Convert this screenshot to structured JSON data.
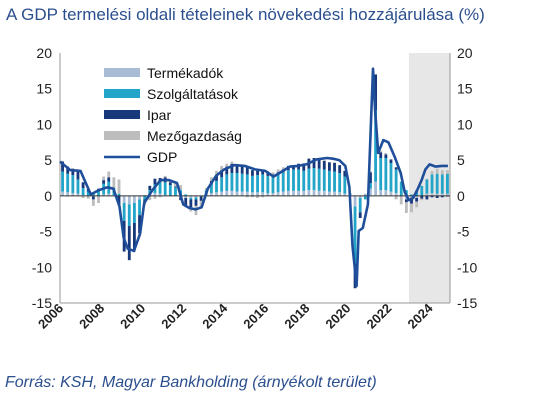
{
  "title": "A GDP termelési oldali tételeinek növekedési hozzájárulása (%)",
  "source": "Forrás: KSH, Magyar Bankholding (árnyékolt terület)",
  "colors": {
    "termekadok": "#a9bcd6",
    "szolgaltatasok": "#22a5c8",
    "ipar": "#17397c",
    "mezogazdasag": "#bdbdbd",
    "gdp": "#1f4e9a",
    "shade": "#e7e7e7",
    "axis": "#999999"
  },
  "chart_data": {
    "type": "bar",
    "stacked": true,
    "xlabel": "",
    "ylabel": "",
    "ylim": [
      -15,
      20
    ],
    "yticks": [
      "20",
      "15",
      "10",
      "5",
      "0",
      "-5",
      "-10",
      "-15"
    ],
    "xticks": [
      "2006",
      "2008",
      "2010",
      "2012",
      "2014",
      "2016",
      "2018",
      "2020",
      "2022",
      "2024"
    ],
    "x_range": [
      2006.0,
      2025.0
    ],
    "shaded_from": 2023.0,
    "legend_position": "top-left",
    "grid": false,
    "series": [
      {
        "name": "Termékadók",
        "x": [
          2006.125,
          2006.375,
          2006.625,
          2006.875,
          2007.125,
          2007.375,
          2007.625,
          2007.875,
          2008.125,
          2008.375,
          2008.625,
          2008.875,
          2009.125,
          2009.375,
          2009.625,
          2009.875,
          2010.125,
          2010.375,
          2010.625,
          2010.875,
          2011.125,
          2011.375,
          2011.625,
          2011.875,
          2012.125,
          2012.375,
          2012.625,
          2012.875,
          2013.125,
          2013.375,
          2013.625,
          2013.875,
          2014.125,
          2014.375,
          2014.625,
          2014.875,
          2015.125,
          2015.375,
          2015.625,
          2015.875,
          2016.125,
          2016.375,
          2016.625,
          2016.875,
          2017.125,
          2017.375,
          2017.625,
          2017.875,
          2018.125,
          2018.375,
          2018.625,
          2018.875,
          2019.125,
          2019.375,
          2019.625,
          2019.875,
          2020.125,
          2020.375,
          2020.625,
          2020.875,
          2021.125,
          2021.375,
          2021.625,
          2021.875,
          2022.125,
          2022.375,
          2022.625,
          2022.875,
          2023.125,
          2023.375,
          2023.625,
          2023.875,
          2024.125,
          2024.375,
          2024.625,
          2024.875
        ],
        "values": [
          0.6,
          0.5,
          0.4,
          0.3,
          0.1,
          0.0,
          -0.1,
          0.0,
          0.2,
          0.3,
          0.1,
          0.0,
          -1.0,
          -1.2,
          -1.0,
          -0.5,
          0.1,
          0.3,
          0.4,
          0.3,
          0.1,
          0.0,
          0.0,
          -0.2,
          -0.3,
          -0.3,
          -0.2,
          0.0,
          0.2,
          0.4,
          0.5,
          0.6,
          0.7,
          0.7,
          0.6,
          0.6,
          0.6,
          0.5,
          0.5,
          0.5,
          0.4,
          0.4,
          0.5,
          0.6,
          0.7,
          0.7,
          0.7,
          0.7,
          0.8,
          0.8,
          0.7,
          0.7,
          0.6,
          0.6,
          0.5,
          0.3,
          0.0,
          -1.5,
          -0.3,
          0.3,
          1.0,
          2.0,
          0.8,
          0.8,
          0.6,
          0.4,
          0.0,
          -0.5,
          -0.5,
          -0.3,
          0.0,
          0.3,
          0.4,
          0.3,
          0.3,
          0.3
        ]
      },
      {
        "name": "Szolgáltatások",
        "x": [
          2006.125,
          2006.375,
          2006.625,
          2006.875,
          2007.125,
          2007.375,
          2007.625,
          2007.875,
          2008.125,
          2008.375,
          2008.625,
          2008.875,
          2009.125,
          2009.375,
          2009.625,
          2009.875,
          2010.125,
          2010.375,
          2010.625,
          2010.875,
          2011.125,
          2011.375,
          2011.625,
          2011.875,
          2012.125,
          2012.375,
          2012.625,
          2012.875,
          2013.125,
          2013.375,
          2013.625,
          2013.875,
          2014.125,
          2014.375,
          2014.625,
          2014.875,
          2015.125,
          2015.375,
          2015.625,
          2015.875,
          2016.125,
          2016.375,
          2016.625,
          2016.875,
          2017.125,
          2017.375,
          2017.625,
          2017.875,
          2018.125,
          2018.375,
          2018.625,
          2018.875,
          2019.125,
          2019.375,
          2019.625,
          2019.875,
          2020.125,
          2020.375,
          2020.625,
          2020.875,
          2021.125,
          2021.375,
          2021.625,
          2021.875,
          2022.125,
          2022.375,
          2022.625,
          2022.875,
          2023.125,
          2023.375,
          2023.625,
          2023.875,
          2024.125,
          2024.375,
          2024.625,
          2024.875
        ],
        "values": [
          2.8,
          2.6,
          2.5,
          2.0,
          1.0,
          0.6,
          0.3,
          0.8,
          1.5,
          1.7,
          1.0,
          0.3,
          -2.5,
          -3.0,
          -2.8,
          -2.2,
          -0.5,
          0.5,
          1.2,
          1.6,
          1.8,
          1.5,
          1.2,
          0.8,
          0.2,
          -0.2,
          -0.3,
          -0.1,
          0.6,
          1.2,
          1.6,
          2.0,
          2.3,
          2.5,
          2.6,
          2.5,
          2.4,
          2.3,
          2.4,
          2.5,
          2.4,
          2.3,
          2.5,
          2.7,
          2.9,
          3.0,
          3.0,
          2.8,
          3.0,
          3.1,
          3.1,
          3.0,
          2.9,
          2.8,
          2.7,
          2.4,
          0.3,
          -8.0,
          -2.0,
          -0.5,
          0.8,
          10.0,
          4.5,
          4.5,
          4.0,
          3.3,
          2.0,
          0.8,
          0.2,
          0.8,
          1.4,
          2.0,
          2.6,
          2.8,
          2.7,
          2.8
        ]
      },
      {
        "name": "Ipar",
        "x": [
          2006.125,
          2006.375,
          2006.625,
          2006.875,
          2007.125,
          2007.375,
          2007.625,
          2007.875,
          2008.125,
          2008.375,
          2008.625,
          2008.875,
          2009.125,
          2009.375,
          2009.625,
          2009.875,
          2010.125,
          2010.375,
          2010.625,
          2010.875,
          2011.125,
          2011.375,
          2011.625,
          2011.875,
          2012.125,
          2012.375,
          2012.625,
          2012.875,
          2013.125,
          2013.375,
          2013.625,
          2013.875,
          2014.125,
          2014.375,
          2014.625,
          2014.875,
          2015.125,
          2015.375,
          2015.625,
          2015.875,
          2016.125,
          2016.375,
          2016.625,
          2016.875,
          2017.125,
          2017.375,
          2017.625,
          2017.875,
          2018.125,
          2018.375,
          2018.625,
          2018.875,
          2019.125,
          2019.375,
          2019.625,
          2019.875,
          2020.125,
          2020.375,
          2020.625,
          2020.875,
          2021.125,
          2021.375,
          2021.625,
          2021.875,
          2022.125,
          2022.375,
          2022.625,
          2022.875,
          2023.125,
          2023.375,
          2023.625,
          2023.875,
          2024.125,
          2024.375,
          2024.625,
          2024.875
        ],
        "values": [
          1.4,
          1.0,
          0.8,
          1.3,
          0.8,
          0.3,
          -0.4,
          0.2,
          0.5,
          0.6,
          0.0,
          -1.3,
          -4.3,
          -4.8,
          -3.8,
          -2.5,
          -0.5,
          0.6,
          0.8,
          0.6,
          0.7,
          0.4,
          0.1,
          -0.4,
          -1.0,
          -1.1,
          -0.9,
          -0.6,
          0.0,
          0.5,
          0.8,
          1.0,
          1.1,
          1.3,
          1.1,
          1.1,
          1.0,
          0.8,
          0.7,
          0.6,
          0.4,
          0.3,
          0.3,
          0.4,
          0.6,
          0.6,
          0.8,
          1.0,
          1.4,
          1.4,
          1.3,
          1.2,
          1.2,
          1.2,
          1.1,
          0.8,
          0.1,
          -3.4,
          -0.8,
          0.0,
          1.5,
          5.0,
          0.8,
          0.5,
          0.5,
          0.3,
          0.0,
          -0.4,
          -0.6,
          -0.5,
          -0.4,
          -0.5,
          -0.2,
          -0.3,
          -0.2,
          -0.1
        ]
      },
      {
        "name": "Mezőgazdaság",
        "x": [
          2006.125,
          2006.375,
          2006.625,
          2006.875,
          2007.125,
          2007.375,
          2007.625,
          2007.875,
          2008.125,
          2008.375,
          2008.625,
          2008.875,
          2009.125,
          2009.375,
          2009.625,
          2009.875,
          2010.125,
          2010.375,
          2010.625,
          2010.875,
          2011.125,
          2011.375,
          2011.625,
          2011.875,
          2012.125,
          2012.375,
          2012.625,
          2012.875,
          2013.125,
          2013.375,
          2013.625,
          2013.875,
          2014.125,
          2014.375,
          2014.625,
          2014.875,
          2015.125,
          2015.375,
          2015.625,
          2015.875,
          2016.125,
          2016.375,
          2016.625,
          2016.875,
          2017.125,
          2017.375,
          2017.625,
          2017.875,
          2018.125,
          2018.375,
          2018.625,
          2018.875,
          2019.125,
          2019.375,
          2019.625,
          2019.875,
          2020.125,
          2020.375,
          2020.625,
          2020.875,
          2021.125,
          2021.375,
          2021.625,
          2021.875,
          2022.125,
          2022.375,
          2022.625,
          2022.875,
          2023.125,
          2023.375,
          2023.625,
          2023.875,
          2024.125,
          2024.375,
          2024.625,
          2024.875
        ],
        "values": [
          0.1,
          -0.1,
          0.2,
          0.0,
          -0.3,
          -0.4,
          -0.9,
          -1.0,
          0.5,
          0.8,
          1.5,
          2.0,
          0.0,
          0.0,
          -0.3,
          -0.5,
          -0.3,
          -0.6,
          -0.4,
          -0.2,
          0.2,
          0.4,
          0.6,
          0.7,
          -0.3,
          -0.6,
          -1.3,
          -0.8,
          0.3,
          0.5,
          0.6,
          0.6,
          0.4,
          0.3,
          0.1,
          0.0,
          -0.2,
          -0.2,
          -0.3,
          -0.2,
          0.3,
          0.3,
          0.4,
          0.3,
          -0.1,
          0.0,
          0.0,
          0.1,
          0.1,
          0.0,
          0.1,
          0.1,
          0.0,
          0.1,
          0.0,
          0.0,
          0.0,
          -0.1,
          0.0,
          0.0,
          0.1,
          0.0,
          0.2,
          0.2,
          0.0,
          -0.5,
          -1.2,
          -1.5,
          -1.2,
          -0.8,
          -0.2,
          0.1,
          0.5,
          0.7,
          0.6,
          0.5
        ]
      },
      {
        "name": "GDP",
        "type": "line",
        "x": [
          2006.0,
          2006.5,
          2007.0,
          2007.5,
          2007.9,
          2008.3,
          2008.6,
          2008.9,
          2009.1,
          2009.3,
          2009.6,
          2009.9,
          2010.1,
          2010.5,
          2010.9,
          2011.3,
          2011.7,
          2012.0,
          2012.3,
          2012.6,
          2012.9,
          2013.2,
          2013.6,
          2014.0,
          2014.5,
          2015.0,
          2015.5,
          2016.0,
          2016.4,
          2016.8,
          2017.2,
          2017.6,
          2018.0,
          2018.5,
          2019.0,
          2019.3,
          2019.6,
          2019.9,
          2020.1,
          2020.25,
          2020.45,
          2020.55,
          2020.75,
          2021.0,
          2021.25,
          2021.35,
          2021.5,
          2021.75,
          2022.0,
          2022.3,
          2022.6,
          2022.8,
          2023.0,
          2023.2,
          2023.4,
          2023.6,
          2023.8,
          2024.0,
          2024.3,
          2024.6,
          2024.9
        ],
        "values": [
          4.8,
          3.6,
          3.5,
          0.2,
          0.8,
          1.2,
          1.0,
          -1.5,
          -5.8,
          -7.4,
          -7.7,
          -5.3,
          -1.0,
          0.8,
          2.2,
          2.2,
          1.8,
          -1.2,
          -1.7,
          -1.9,
          -1.6,
          1.0,
          2.8,
          3.7,
          4.3,
          4.2,
          3.7,
          3.5,
          2.7,
          3.4,
          4.1,
          4.2,
          4.4,
          5.1,
          5.3,
          5.2,
          5.0,
          4.2,
          1.2,
          -7.0,
          -12.6,
          -4.9,
          -4.5,
          -1.2,
          17.8,
          12.0,
          6.0,
          7.8,
          7.5,
          5.5,
          3.2,
          0.5,
          -0.6,
          -0.3,
          0.8,
          2.1,
          3.7,
          4.4,
          4.1,
          4.2,
          4.2
        ]
      }
    ]
  }
}
